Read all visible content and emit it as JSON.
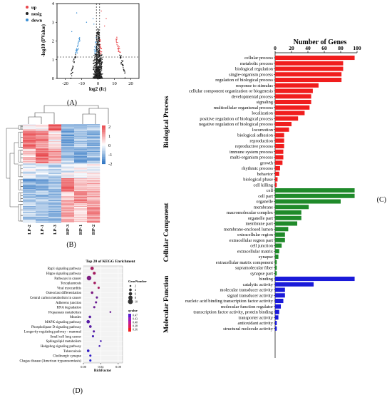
{
  "panel_labels": {
    "a": "(A)",
    "b": "(B)",
    "c": "(C)",
    "d": "(D)"
  },
  "chart_data": [
    {
      "panel": "A",
      "type": "scatter",
      "title": "",
      "xlabel": "log2 (fc)",
      "ylabel": "-log10 (PValue)",
      "xlim": [
        -25,
        25
      ],
      "ylim": [
        0,
        4
      ],
      "xticks": [
        "-20",
        "-10",
        "0",
        "10",
        "20"
      ],
      "yticks": [
        "0",
        "1",
        "2",
        "3",
        "4"
      ],
      "thresholds": {
        "log2fc": [
          -1,
          1
        ],
        "neglog10p": 1.3
      },
      "legend": [
        {
          "name": "up",
          "color": "#e8474c"
        },
        {
          "name": "nosig",
          "color": "#222222"
        },
        {
          "name": "down",
          "color": "#3a8fd4"
        }
      ]
    },
    {
      "panel": "B",
      "type": "heatmap",
      "columns": [
        "LP-2",
        "LP-1",
        "LP-3",
        "HP-3",
        "HP-1",
        "HP-2"
      ],
      "color_scale": {
        "min": -2,
        "max": 2,
        "ticks": [
          "2",
          "1",
          "0",
          "-1",
          "-2"
        ],
        "low": "#2b73c2",
        "mid": "#ffffff",
        "high": "#e8474c"
      }
    },
    {
      "panel": "C",
      "type": "bar",
      "orientation": "horizontal",
      "xlabel": "Number of Genes",
      "xlim": [
        0,
        100
      ],
      "xticks": [
        "0",
        "20",
        "40",
        "60",
        "80",
        "100"
      ],
      "groups": [
        {
          "name": "Biological Process",
          "color": "#f01d1d",
          "categories": [
            {
              "label": "cellular process",
              "value": 97
            },
            {
              "label": "metabolic process",
              "value": 83
            },
            {
              "label": "biological regulation",
              "value": 83
            },
            {
              "label": "single-organism process",
              "value": 81
            },
            {
              "label": "regulation of biological process",
              "value": 81
            },
            {
              "label": "response to stimulus",
              "value": 53
            },
            {
              "label": "cellular component organization or biogenesis",
              "value": 46
            },
            {
              "label": "developmental process",
              "value": 44
            },
            {
              "label": "signaling",
              "value": 44
            },
            {
              "label": "multicellular organismal process",
              "value": 42
            },
            {
              "label": "localization",
              "value": 36
            },
            {
              "label": "positive regulation of biological process",
              "value": 28
            },
            {
              "label": "negative regulation of biological process",
              "value": 20
            },
            {
              "label": "locomotion",
              "value": 17
            },
            {
              "label": "biological adhesion",
              "value": 11
            },
            {
              "label": "reproduction",
              "value": 11
            },
            {
              "label": "reproductive process",
              "value": 11
            },
            {
              "label": "immune system process",
              "value": 10
            },
            {
              "label": "multi-organism process",
              "value": 10
            },
            {
              "label": "growth",
              "value": 9
            },
            {
              "label": "rhythmic process",
              "value": 6
            },
            {
              "label": "behavior",
              "value": 5
            },
            {
              "label": "biological phase",
              "value": 3
            },
            {
              "label": "cell killing",
              "value": 2
            }
          ]
        },
        {
          "name": "Cellular Component",
          "color": "#1f8a2a",
          "categories": [
            {
              "label": "cell",
              "value": 97
            },
            {
              "label": "cell part",
              "value": 97
            },
            {
              "label": "organelle",
              "value": 80
            },
            {
              "label": "membrane",
              "value": 41
            },
            {
              "label": "macromolecular complex",
              "value": 32
            },
            {
              "label": "organelle part",
              "value": 32
            },
            {
              "label": "membrane part",
              "value": 27
            },
            {
              "label": "membrane-enclosed lumen",
              "value": 16
            },
            {
              "label": "extracellular region",
              "value": 12
            },
            {
              "label": "extracellular region part",
              "value": 12
            },
            {
              "label": "cell junction",
              "value": 8
            },
            {
              "label": "extracellular matrix",
              "value": 5
            },
            {
              "label": "synapse",
              "value": 4
            },
            {
              "label": "extracellular matrix component",
              "value": 2
            },
            {
              "label": "supramolecular fiber",
              "value": 2
            },
            {
              "label": "synapse part",
              "value": 2
            }
          ]
        },
        {
          "name": "Molecular Function",
          "color": "#1a1ad9",
          "categories": [
            {
              "label": "binding",
              "value": 97
            },
            {
              "label": "catalytic activity",
              "value": 47
            },
            {
              "label": "molecular transducer activity",
              "value": 12
            },
            {
              "label": "signal transducer activity",
              "value": 12
            },
            {
              "label": "nucleic acid binding transcription factor activity",
              "value": 10
            },
            {
              "label": "molecular function regulator",
              "value": 7
            },
            {
              "label": "transcription factor activity, protein binding",
              "value": 5
            },
            {
              "label": "transporter activity",
              "value": 4
            },
            {
              "label": "antioxidant activity",
              "value": 2
            },
            {
              "label": "structural molecule activity",
              "value": 2
            }
          ]
        }
      ]
    },
    {
      "panel": "D",
      "type": "scatter",
      "title": "Top 20 of KEGG Enrichment",
      "xlabel": "RichFactor",
      "xlim": [
        0,
        0.09
      ],
      "xticks": [
        "0.00",
        "0.04",
        "0.08"
      ],
      "size_legend_title": "GeneNumber",
      "size_legend": [
        "2",
        "4",
        "6",
        "8",
        "10"
      ],
      "color_legend_title": "qvalue",
      "color_legend": [
        "0.47",
        "0.43",
        "0.40",
        "0.38",
        "0.36"
      ],
      "color_low": "#1f1fd6",
      "color_high": "#f01d1d",
      "categories": [
        {
          "label": "Rap1 signaling pathway",
          "x": 0.02,
          "size": 6,
          "q": 0.4
        },
        {
          "label": "Hippo signaling pathway",
          "x": 0.025,
          "size": 5,
          "q": 0.4
        },
        {
          "label": "Pathways in cancer",
          "x": 0.013,
          "size": 9,
          "q": 0.42
        },
        {
          "label": "Toxoplasmosis",
          "x": 0.026,
          "size": 4,
          "q": 0.4
        },
        {
          "label": "Viral myocarditis",
          "x": 0.035,
          "size": 3,
          "q": 0.4
        },
        {
          "label": "Osteoclast differentiation",
          "x": 0.02,
          "size": 4,
          "q": 0.42
        },
        {
          "label": "Central carbon metabolism in cancer",
          "x": 0.031,
          "size": 3,
          "q": 0.43
        },
        {
          "label": "Adherens junction",
          "x": 0.029,
          "size": 3,
          "q": 0.43
        },
        {
          "label": "RNA degradation",
          "x": 0.025,
          "size": 3,
          "q": 0.43
        },
        {
          "label": "Propanoate metabolism",
          "x": 0.062,
          "size": 2,
          "q": 0.43
        },
        {
          "label": "Measles",
          "x": 0.015,
          "size": 4,
          "q": 0.44
        },
        {
          "label": "MAPK signaling pathway",
          "x": 0.011,
          "size": 6,
          "q": 0.44
        },
        {
          "label": "Phospholipase D signaling pathway",
          "x": 0.016,
          "size": 4,
          "q": 0.44
        },
        {
          "label": "Longevity regulating pathway - mammal",
          "x": 0.024,
          "size": 3,
          "q": 0.44
        },
        {
          "label": "Small cell lung cancer",
          "x": 0.022,
          "size": 3,
          "q": 0.45
        },
        {
          "label": "Sphingolipid metabolism",
          "x": 0.04,
          "size": 2,
          "q": 0.45
        },
        {
          "label": "Hedgehog signaling pathway",
          "x": 0.037,
          "size": 2,
          "q": 0.45
        },
        {
          "label": "Tuberculosis",
          "x": 0.011,
          "size": 4,
          "q": 0.46
        },
        {
          "label": "Cholinergic synapse",
          "x": 0.016,
          "size": 3,
          "q": 0.46
        },
        {
          "label": "Chagas disease (American trypanosomiasis)",
          "x": 0.016,
          "size": 3,
          "q": 0.47
        }
      ]
    }
  ]
}
